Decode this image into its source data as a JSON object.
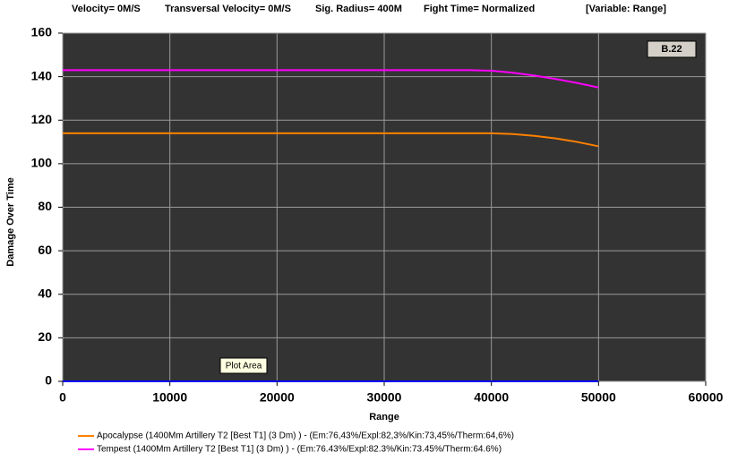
{
  "chart_data": {
    "type": "line",
    "header": [
      "Velocity= 0M/S",
      "Transversal Velocity= 0M/S",
      "Sig. Radius= 400M",
      "Fight Time= Normalized",
      "[Variable: Range]"
    ],
    "x_label": "Range",
    "y_label": "Damage Over Time",
    "annotations": [
      "B.22",
      "Plot Area"
    ],
    "x": [
      0,
      10000,
      20000,
      30000,
      38000,
      40000,
      42000,
      44000,
      46000,
      48000,
      50000
    ],
    "series": [
      {
        "name": "Apocalypse (1400Mm Artillery T2 [Best T1] (3 Dm) ) - (Em:76,43%/Expl:82,3%/Kin:73,45%/Therm:64,6%)",
        "color": "#ff8000",
        "values": [
          114,
          114,
          114,
          114,
          114,
          114,
          113.6,
          112.8,
          111.6,
          110,
          108
        ]
      },
      {
        "name": "Tempest (1400Mm Artillery T2 [Best T1] (3 Dm) ) - (Em:76.43%/Expl:82.3%/Kin:73.45%/Therm:64.6%)",
        "color": "#ff00ff",
        "values": [
          143,
          143,
          143,
          143,
          143,
          142.7,
          141.8,
          140.5,
          138.9,
          137.1,
          135
        ]
      },
      {
        "name": null,
        "color": "#0000ff",
        "values": [
          0,
          0,
          0,
          0,
          0,
          0,
          0,
          0,
          0,
          0,
          0
        ]
      }
    ],
    "xlim": [
      0,
      60000
    ],
    "xticks": [
      0,
      10000,
      20000,
      30000,
      40000,
      50000,
      60000
    ],
    "ylim": [
      0,
      160
    ],
    "yticks": [
      0,
      20,
      40,
      60,
      80,
      100,
      120,
      140,
      160
    ],
    "grid": true
  }
}
